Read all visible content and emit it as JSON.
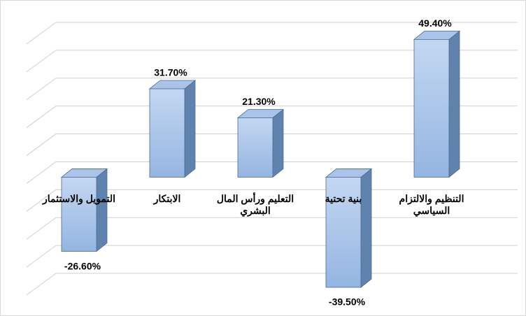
{
  "chart_data": {
    "type": "bar",
    "categories": [
      "التمويل والاستثمار",
      "الابتكار",
      "التعليم ورأس المال البشري",
      "بنية تحتية",
      "التنظيم والالتزام السياسي"
    ],
    "values": [
      -26.6,
      31.7,
      21.3,
      -39.5,
      49.4
    ],
    "value_labels": [
      "-26.60%",
      "31.70%",
      "21.30%",
      "-39.50%",
      "49.40%"
    ],
    "color": "#8eb0e0",
    "ylim": [
      -40,
      50
    ],
    "yticks": [
      -40,
      -30,
      -20,
      -10,
      0,
      10,
      20,
      30,
      40,
      50
    ],
    "grid": true
  }
}
